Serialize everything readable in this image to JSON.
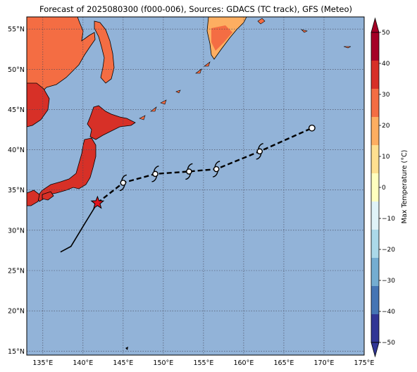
{
  "title": "Forecast of 2025080300 (f000-006), Sources: GDACS (TC track), GFS (Meteo)",
  "axes": {
    "lon_labels": [
      "135°E",
      "140°E",
      "145°E",
      "150°E",
      "155°E",
      "160°E",
      "165°E",
      "170°E",
      "175°E"
    ],
    "lat_labels": [
      "55°N",
      "50°N",
      "45°N",
      "40°N",
      "35°N",
      "30°N",
      "25°N",
      "20°N",
      "15°N"
    ],
    "lon_range": [
      133,
      175
    ],
    "lat_range": [
      14.5,
      56.5
    ]
  },
  "colorbar": {
    "label": "Max Temperature (°C)",
    "ticks": [
      "50",
      "40",
      "30",
      "20",
      "10",
      "0",
      "−10",
      "−20",
      "−30",
      "−40",
      "−50"
    ],
    "colors": [
      "#a50026",
      "#d73027",
      "#f46d43",
      "#fdae61",
      "#fee090",
      "#ffffbf",
      "#e0f3f8",
      "#abd9e9",
      "#74add1",
      "#4575b4",
      "#313695"
    ]
  },
  "colors": {
    "ocean": "#92b3d8",
    "land_hot": "#d73027",
    "land_warm": "#f46d43",
    "land_mild": "#fdae61",
    "track": "#000000",
    "current_position": "#e0141e"
  },
  "chart_data": {
    "type": "map",
    "past_track": [
      [
        137.2,
        27.3
      ],
      [
        138.5,
        28.0
      ],
      [
        140.2,
        30.8
      ],
      [
        141.8,
        33.4
      ]
    ],
    "current_position": [
      141.8,
      33.4
    ],
    "forecast_track": [
      [
        141.8,
        33.4
      ],
      [
        145.0,
        35.9
      ],
      [
        149.0,
        37.0
      ],
      [
        153.2,
        37.3
      ],
      [
        156.6,
        37.6
      ],
      [
        162.0,
        39.8
      ],
      [
        168.5,
        42.7
      ]
    ],
    "forecast_points": [
      {
        "lon": 145.0,
        "lat": 35.9,
        "symbol": "tropical-storm"
      },
      {
        "lon": 149.0,
        "lat": 37.0,
        "symbol": "tropical-storm"
      },
      {
        "lon": 153.2,
        "lat": 37.3,
        "symbol": "tropical-storm"
      },
      {
        "lon": 156.6,
        "lat": 37.6,
        "symbol": "tropical-storm"
      },
      {
        "lon": 162.0,
        "lat": 39.8,
        "symbol": "tropical-storm"
      },
      {
        "lon": 168.5,
        "lat": 42.7,
        "symbol": "low"
      }
    ],
    "grid": true
  }
}
